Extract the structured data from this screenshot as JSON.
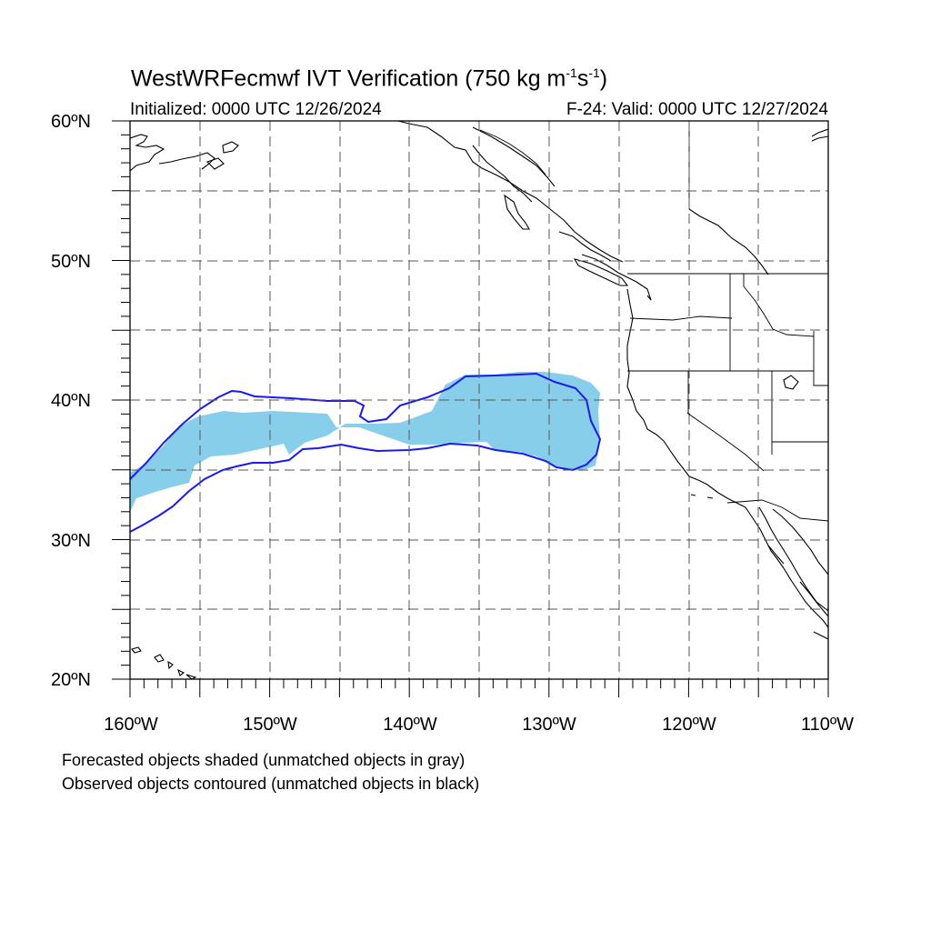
{
  "header": {
    "title_main": "WestWRFecmwf IVT Verification (750 kg m",
    "title_exp1": "-1",
    "title_mid": "s",
    "title_exp2": "-1",
    "title_end": ")",
    "initialized": "Initialized: 0000 UTC 12/26/2024",
    "valid": "F-24: Valid: 0000 UTC 12/27/2024"
  },
  "axes": {
    "lat_labels": [
      "60ºN",
      "50ºN",
      "40ºN",
      "30ºN",
      "20ºN"
    ],
    "lon_labels": [
      "160ºW",
      "150ºW",
      "140ºW",
      "130ºW",
      "120ºW",
      "110ºW"
    ],
    "lat_range": [
      20,
      60
    ],
    "lon_range": [
      -160,
      -110
    ],
    "grid": "dashed every 5 degrees"
  },
  "legend": {
    "line1": "Forecasted objects shaded (unmatched objects in gray)",
    "line2": "Observed objects contoured (unmatched objects in black)"
  },
  "colors": {
    "forecast_fill": "#87ceeb",
    "observed_contour": "#1a1aee",
    "coastline": "#000000",
    "grid": "#555555"
  }
}
